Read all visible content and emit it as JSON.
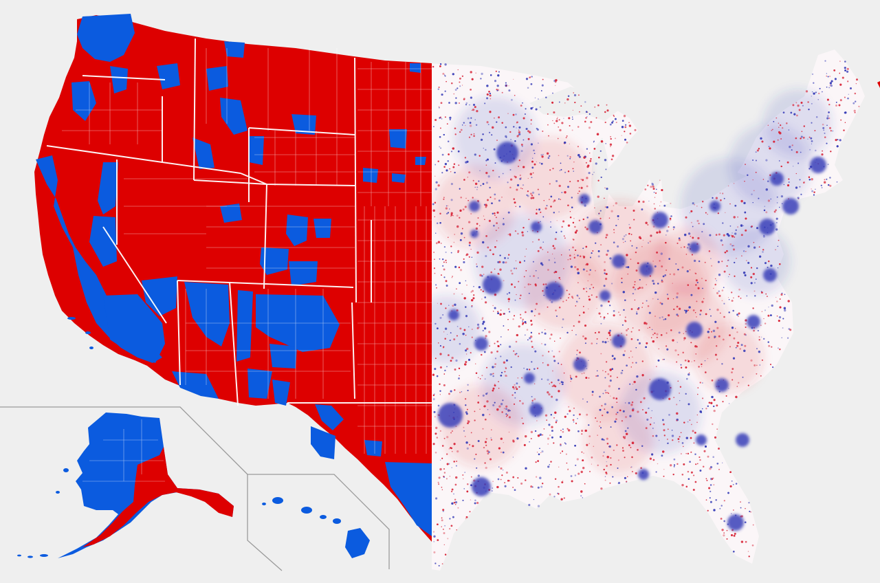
{
  "map": {
    "left_panel": {
      "style": "county choropleth",
      "fill_colors": {
        "red": "#dd0000",
        "blue": "#0b5bdf"
      },
      "border_color": "#ffffff",
      "insets": [
        "Alaska",
        "Hawaii"
      ],
      "inset_frame_color": "#9a9a9a"
    },
    "right_panel": {
      "style": "dot density",
      "dot_colors": {
        "red": "#d8283b",
        "blue": "#3a3fb8"
      },
      "land_fill": "#fbf6f8"
    },
    "background": "#efefef"
  }
}
